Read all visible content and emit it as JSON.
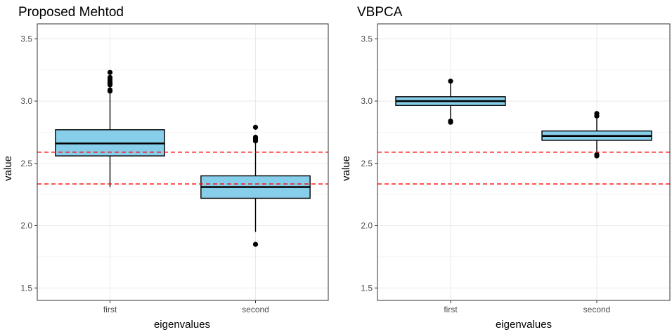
{
  "chart_data": [
    {
      "type": "box",
      "title": "Proposed Mehtod",
      "xlabel": "eigenvalues",
      "ylabel": "value",
      "categories": [
        "first",
        "second"
      ],
      "ylim": [
        1.4,
        3.62
      ],
      "yticks": [
        "1.5",
        "2.0",
        "2.5",
        "3.0",
        "3.5"
      ],
      "boxes": [
        {
          "category": "first",
          "lower_whisker": 2.31,
          "q1": 2.56,
          "median": 2.66,
          "q3": 2.77,
          "upper_whisker": 3.06,
          "outliers": [
            3.08,
            3.09,
            3.13,
            3.14,
            3.15,
            3.17,
            3.19,
            3.23
          ]
        },
        {
          "category": "second",
          "lower_whisker": 1.95,
          "q1": 2.22,
          "median": 2.31,
          "q3": 2.4,
          "upper_whisker": 2.67,
          "outliers": [
            1.85,
            2.68,
            2.69,
            2.7,
            2.71,
            2.79
          ]
        }
      ],
      "reference_lines": [
        2.59,
        2.335
      ],
      "box_fill": "#87ceeb",
      "reference_color": "#ff0000",
      "grid": true
    },
    {
      "type": "box",
      "title": "VBPCA",
      "xlabel": "eigenvalues",
      "ylabel": "value",
      "categories": [
        "first",
        "second"
      ],
      "ylim": [
        1.4,
        3.62
      ],
      "yticks": [
        "1.5",
        "2.0",
        "2.5",
        "3.0",
        "3.5"
      ],
      "boxes": [
        {
          "category": "first",
          "lower_whisker": 2.86,
          "q1": 2.965,
          "median": 3.0,
          "q3": 3.035,
          "upper_whisker": 3.14,
          "outliers": [
            2.83,
            2.84,
            3.16
          ]
        },
        {
          "category": "second",
          "lower_whisker": 2.59,
          "q1": 2.685,
          "median": 2.72,
          "q3": 2.76,
          "upper_whisker": 2.86,
          "outliers": [
            2.56,
            2.57,
            2.88,
            2.9
          ]
        }
      ],
      "reference_lines": [
        2.59,
        2.335
      ],
      "box_fill": "#87ceeb",
      "reference_color": "#ff0000",
      "grid": true
    }
  ]
}
